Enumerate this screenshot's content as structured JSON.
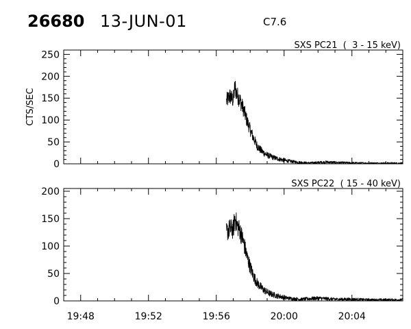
{
  "header": {
    "event_number": "26680",
    "date": "13-JUN-01",
    "flare_class": "C7.6"
  },
  "chart_data": [
    {
      "type": "line",
      "title": "SXS PC21  (  3 - 15 keV)",
      "ylabel": "CTS/SEC",
      "ylim": [
        0,
        260
      ],
      "yticks": [
        0,
        50,
        100,
        150,
        200,
        250
      ],
      "xlim": [
        "19:47",
        "20:07"
      ],
      "xticks": [
        "19:48",
        "19:52",
        "19:56",
        "20:00",
        "20:04"
      ],
      "x": [
        "19:56:36",
        "19:56:48",
        "19:57:00",
        "19:57:06",
        "19:57:12",
        "19:57:24",
        "19:57:36",
        "19:57:48",
        "19:58:00",
        "19:58:12",
        "19:58:24",
        "19:58:36",
        "19:58:48",
        "19:59:00",
        "19:59:12",
        "19:59:24",
        "19:59:36",
        "19:59:48",
        "20:00:00",
        "20:00:30",
        "20:01:00",
        "20:01:30",
        "20:02:00",
        "20:02:30",
        "20:03:00",
        "20:04:00",
        "20:05:00",
        "20:06:00",
        "20:07:00"
      ],
      "values": [
        143,
        155,
        145,
        178,
        160,
        145,
        125,
        100,
        78,
        58,
        42,
        32,
        25,
        20,
        17,
        14,
        12,
        10,
        8,
        5,
        3,
        2,
        3,
        4,
        3,
        2,
        1.5,
        1.5,
        1.5
      ]
    },
    {
      "type": "line",
      "title": "SXS PC22  ( 15 - 40 keV)",
      "ylabel": "",
      "ylim": [
        0,
        205
      ],
      "yticks": [
        0,
        50,
        100,
        150,
        200
      ],
      "xlim": [
        "19:47",
        "20:07"
      ],
      "xticks": [
        "19:48",
        "19:52",
        "19:56",
        "20:00",
        "20:04"
      ],
      "x": [
        "19:56:36",
        "19:56:48",
        "19:57:00",
        "19:57:06",
        "19:57:12",
        "19:57:24",
        "19:57:36",
        "19:57:48",
        "19:58:00",
        "19:58:12",
        "19:58:24",
        "19:58:36",
        "19:58:48",
        "19:59:00",
        "19:59:12",
        "19:59:24",
        "19:59:36",
        "19:59:48",
        "20:00:00",
        "20:00:30",
        "20:01:00",
        "20:01:30",
        "20:02:00",
        "20:02:30",
        "20:03:00",
        "20:04:00",
        "20:05:00",
        "20:06:00",
        "20:07:00"
      ],
      "values": [
        125,
        132,
        130,
        152,
        140,
        128,
        108,
        82,
        62,
        45,
        33,
        26,
        20,
        16,
        13,
        11,
        9,
        8,
        6,
        4,
        3,
        4,
        5,
        4,
        3,
        3,
        2,
        2,
        2
      ]
    }
  ]
}
